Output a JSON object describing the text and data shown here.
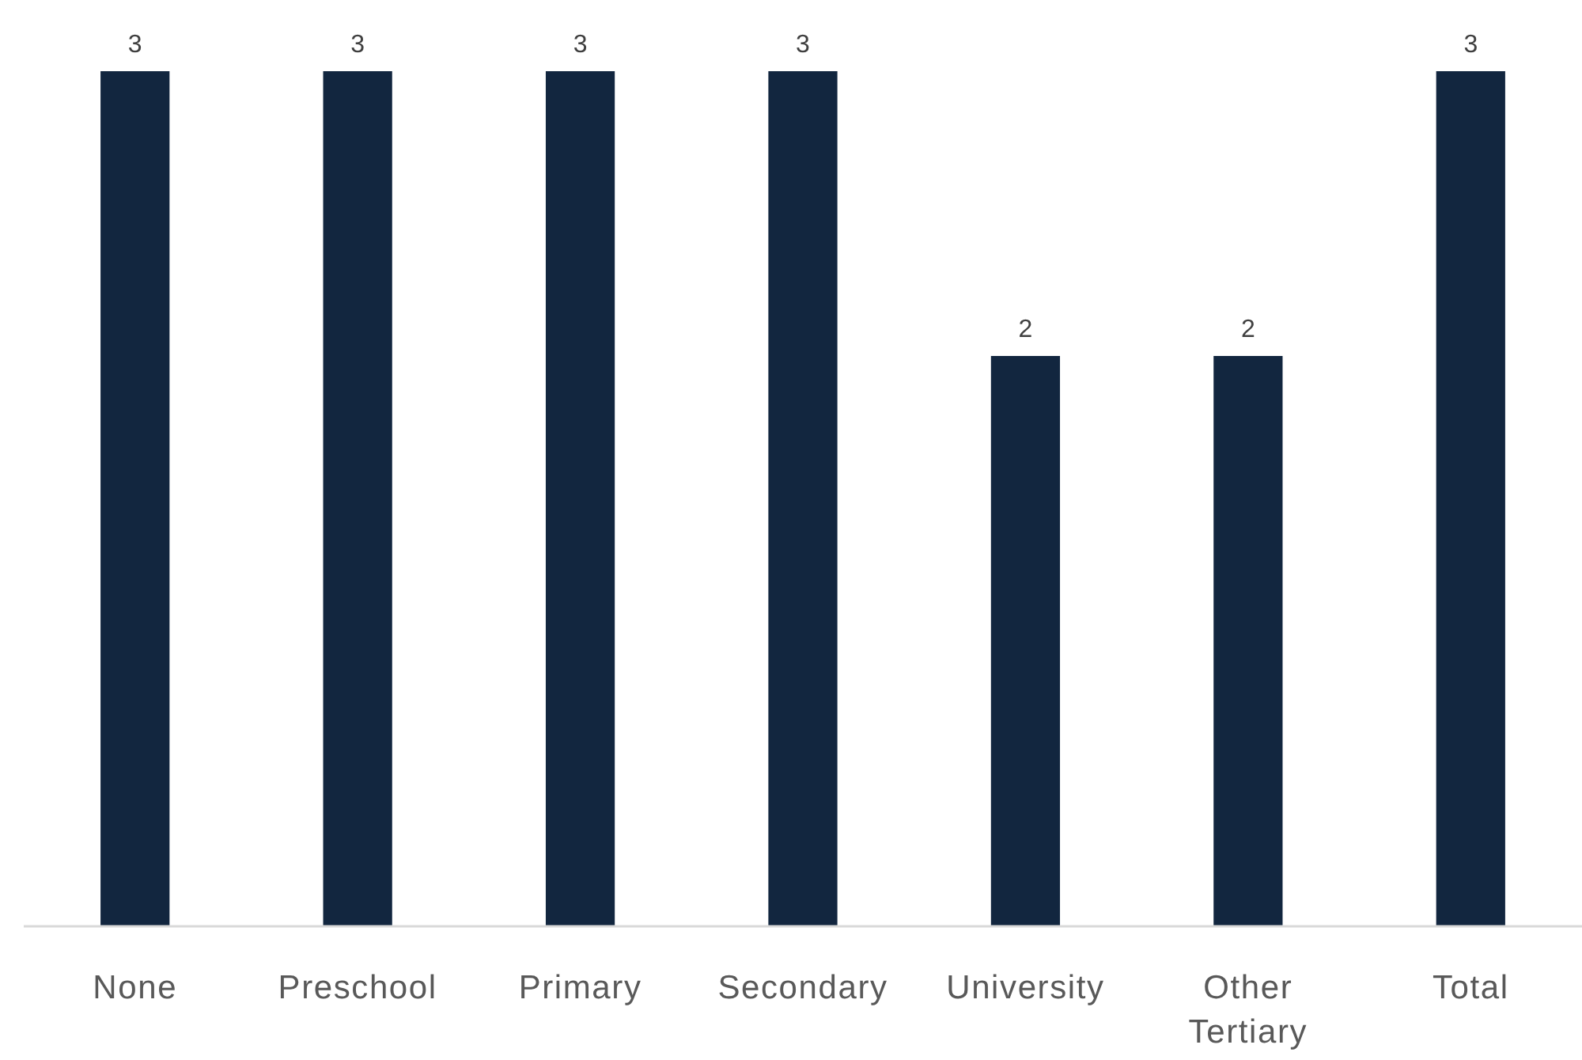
{
  "chart_data": {
    "type": "bar",
    "categories": [
      "None",
      "Preschool",
      "Primary",
      "Secondary",
      "University",
      "Other Tertiary",
      "Total"
    ],
    "values": [
      3,
      3,
      3,
      3,
      2,
      2,
      3
    ],
    "color": "#12263f",
    "data_labels": true
  }
}
